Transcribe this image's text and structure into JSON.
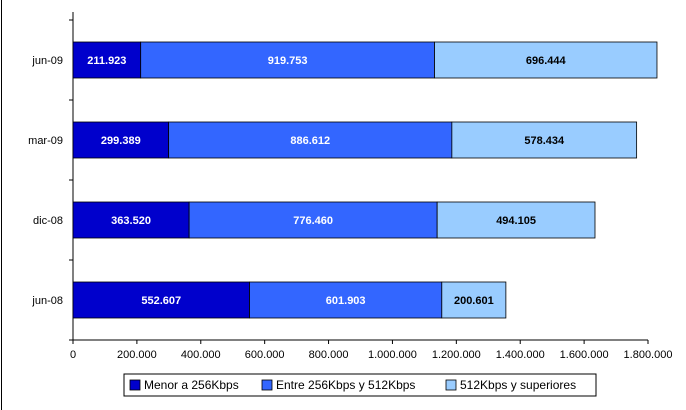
{
  "chart_data": {
    "type": "bar",
    "orientation": "horizontal",
    "stacked": true,
    "title": "",
    "xlabel": "",
    "ylabel": "",
    "categories": [
      "jun-08",
      "dic-08",
      "mar-09",
      "jun-09"
    ],
    "series": [
      {
        "name": "Menor a 256Kbps",
        "color": "#0000cc",
        "label_color": "#ffffff",
        "values": [
          552607,
          363520,
          299389,
          211923
        ],
        "labels": [
          "552.607",
          "363.520",
          "299.389",
          "211.923"
        ]
      },
      {
        "name": "Entre 256Kbps y 512Kbps",
        "color": "#3366ff",
        "label_color": "#ffffff",
        "values": [
          601903,
          776460,
          886612,
          919753
        ],
        "labels": [
          "601.903",
          "776.460",
          "886.612",
          "919.753"
        ]
      },
      {
        "name": "512Kbps y superiores",
        "color": "#99ccff",
        "label_color": "#000000",
        "values": [
          200601,
          494105,
          578434,
          696444
        ],
        "labels": [
          "200.601",
          "494.105",
          "578.434",
          "696.444"
        ]
      }
    ],
    "xlim": [
      0,
      1800000
    ],
    "xticks": [
      0,
      200000,
      400000,
      600000,
      800000,
      1000000,
      1200000,
      1400000,
      1600000,
      1800000
    ],
    "xtick_labels": [
      "0",
      "200.000",
      "400.000",
      "600.000",
      "800.000",
      "1.000.000",
      "1.200.000",
      "1.400.000",
      "1.600.000",
      "1.800.000"
    ],
    "grid": false,
    "legend": "bottom"
  }
}
